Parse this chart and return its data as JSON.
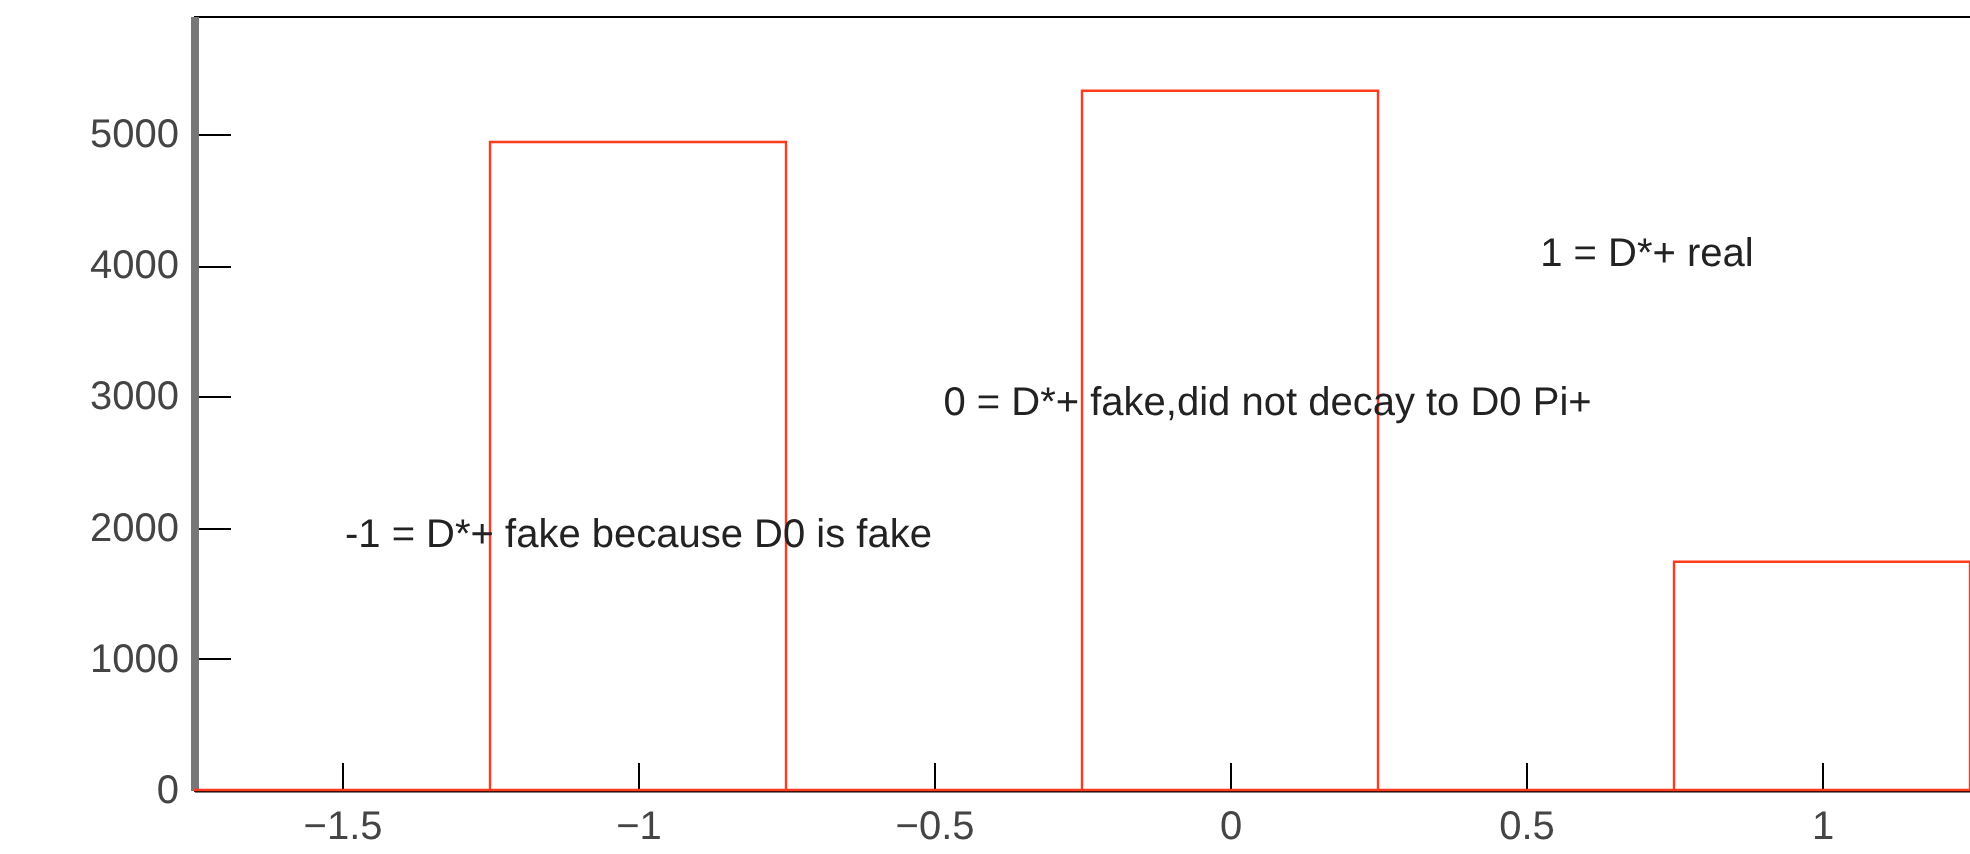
{
  "chart_data": {
    "type": "histogram",
    "bins": [
      -1.75,
      -1.25,
      -0.75,
      -0.25,
      0.25,
      0.75,
      1.25
    ],
    "values": [
      0,
      4940,
      0,
      5330,
      0,
      1740
    ],
    "color": "#ff3b1f",
    "xlim": [
      -1.75,
      1.25
    ],
    "xticks": [
      -1.5,
      -1,
      -0.5,
      0,
      0.5,
      1
    ],
    "ylim": [
      0,
      5900
    ],
    "yticks": [
      0,
      1000,
      2000,
      3000,
      4000,
      5000
    ],
    "annotations": [
      "1 = D*+ real",
      "0 = D*+ fake,did not decay to D0 Pi+",
      "-1 = D*+ fake because D0 is fake"
    ]
  }
}
